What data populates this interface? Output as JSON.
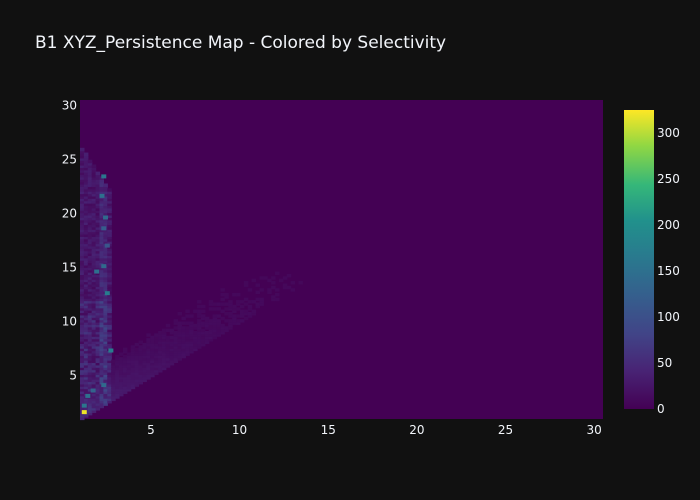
{
  "chart_data": {
    "type": "heatmap",
    "title": "B1 XYZ_Persistence Map - Colored by Selectivity",
    "xlabel": "",
    "ylabel": "",
    "xlim": [
      1,
      30.5
    ],
    "ylim": [
      1,
      30.5
    ],
    "x_ticks": [
      5,
      10,
      15,
      20,
      25,
      30
    ],
    "y_ticks": [
      5,
      10,
      15,
      20,
      25,
      30
    ],
    "colorscale": {
      "name": "Viridis",
      "min": 0,
      "max": 325,
      "ticks": [
        0,
        50,
        100,
        150,
        200,
        250,
        300
      ]
    },
    "grid": false,
    "background_value": 0,
    "hotspots": [
      {
        "x": 1.1,
        "y": 1.6,
        "value": 320
      },
      {
        "x": 1.1,
        "y": 2.2,
        "value": 160
      },
      {
        "x": 1.3,
        "y": 3.1,
        "value": 150
      },
      {
        "x": 1.6,
        "y": 3.6,
        "value": 130
      },
      {
        "x": 2.2,
        "y": 4.1,
        "value": 140
      },
      {
        "x": 2.6,
        "y": 7.3,
        "value": 170
      },
      {
        "x": 1.8,
        "y": 14.6,
        "value": 150
      },
      {
        "x": 2.4,
        "y": 12.6,
        "value": 170
      },
      {
        "x": 2.2,
        "y": 15.1,
        "value": 140
      },
      {
        "x": 2.1,
        "y": 21.6,
        "value": 150
      },
      {
        "x": 2.3,
        "y": 19.6,
        "value": 140
      },
      {
        "x": 2.2,
        "y": 23.4,
        "value": 160
      },
      {
        "x": 2.2,
        "y": 18.6,
        "value": 120
      },
      {
        "x": 2.4,
        "y": 17.0,
        "value": 110
      }
    ]
  }
}
